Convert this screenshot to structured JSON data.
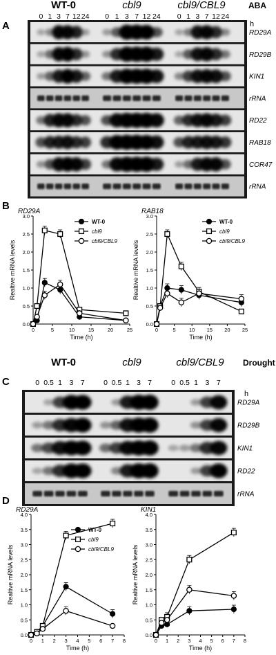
{
  "panelA": {
    "letter": "A",
    "strains": [
      {
        "label": "WT-0",
        "italic": false
      },
      {
        "label": "cbl9",
        "italic": true
      },
      {
        "label": "cbl9/CBL9",
        "italic": true
      }
    ],
    "treatment": "ABA",
    "unit": "h",
    "timepoints": [
      "0",
      "1",
      "3",
      "7",
      "12",
      "24"
    ],
    "genes": [
      "RD29A",
      "RD29B",
      "KIN1",
      "rRNA",
      "RD22",
      "RAB18",
      "COR47",
      "rRNA"
    ]
  },
  "panelC": {
    "letter": "C",
    "strains": [
      {
        "label": "WT-0",
        "italic": false
      },
      {
        "label": "cbl9",
        "italic": true
      },
      {
        "label": "cbl9/CBL9",
        "italic": true
      }
    ],
    "treatment": "Drought",
    "unit": "h",
    "timepoints": [
      "0",
      "0.5",
      "1",
      "3",
      "7"
    ],
    "genes": [
      "RD29A",
      "RD29B",
      "KIN1",
      "RD22",
      "rRNA"
    ]
  },
  "panelB": {
    "letter": "B"
  },
  "panelD": {
    "letter": "D"
  },
  "chart_data": [
    {
      "type": "line",
      "title": "RD29A",
      "xlabel": "Time (h)",
      "ylabel": "Realtive mRNA levels",
      "x": [
        0,
        1,
        3,
        7,
        12,
        24
      ],
      "xticks": [
        0,
        5,
        10,
        15,
        20,
        25
      ],
      "yticks": [
        0,
        0.5,
        1,
        1.5,
        2,
        2.5,
        3
      ],
      "xlim": [
        0,
        25
      ],
      "ylim": [
        0,
        3
      ],
      "series": [
        {
          "name": "WT-0",
          "values": [
            0,
            0.1,
            1.15,
            0.95,
            0.2,
            0.1
          ]
        },
        {
          "name": "cbl9",
          "values": [
            0,
            0.5,
            2.6,
            2.5,
            0.4,
            0.3
          ]
        },
        {
          "name": "cbl9/CBL9",
          "values": [
            0,
            0.2,
            0.8,
            1.1,
            0.3,
            0.1
          ]
        }
      ]
    },
    {
      "type": "line",
      "title": "RAB18",
      "xlabel": "Time (h)",
      "ylabel": "Realtive mRNA levels",
      "x": [
        0,
        1,
        3,
        7,
        12,
        24
      ],
      "xticks": [
        0,
        5,
        10,
        15,
        20,
        25
      ],
      "yticks": [
        0,
        0.5,
        1,
        1.5,
        2,
        2.5,
        3
      ],
      "xlim": [
        0,
        25
      ],
      "ylim": [
        0,
        3
      ],
      "series": [
        {
          "name": "WT-0",
          "values": [
            0,
            0.5,
            1.0,
            0.95,
            0.8,
            0.6
          ]
        },
        {
          "name": "cbl9",
          "values": [
            0,
            0.5,
            2.5,
            1.6,
            0.9,
            0.35
          ]
        },
        {
          "name": "cbl9/CBL9",
          "values": [
            0,
            0.45,
            0.85,
            0.6,
            0.85,
            0.7
          ]
        }
      ]
    },
    {
      "type": "line",
      "title": "RD29A",
      "xlabel": "Time (h)",
      "ylabel": "Realtive mRNA levels",
      "x": [
        0,
        0.5,
        1,
        3,
        7
      ],
      "xticks": [
        0,
        1,
        2,
        3,
        4,
        5,
        6,
        7,
        8
      ],
      "yticks": [
        0,
        0.5,
        1,
        1.5,
        2,
        2.5,
        3,
        3.5,
        4
      ],
      "xlim": [
        0,
        8
      ],
      "ylim": [
        0,
        4
      ],
      "series": [
        {
          "name": "WT-0",
          "values": [
            0,
            0.05,
            0.3,
            1.6,
            0.7
          ]
        },
        {
          "name": "cbl9",
          "values": [
            0,
            0.1,
            0.3,
            3.3,
            3.7
          ]
        },
        {
          "name": "cbl9/CBL9",
          "values": [
            0,
            0.05,
            0.2,
            0.8,
            0.3
          ]
        }
      ]
    },
    {
      "type": "line",
      "title": "KIN1",
      "xlabel": "Time (h)",
      "ylabel": "Realtive mRNA levels",
      "x": [
        0,
        0.5,
        1,
        3,
        7
      ],
      "xticks": [
        0,
        1,
        2,
        3,
        4,
        5,
        6,
        7,
        8
      ],
      "yticks": [
        0,
        0.5,
        1,
        1.5,
        2,
        2.5,
        3,
        3.5,
        4
      ],
      "xlim": [
        0,
        8
      ],
      "ylim": [
        0,
        4
      ],
      "series": [
        {
          "name": "WT-0",
          "values": [
            0,
            0.3,
            0.35,
            0.8,
            0.85
          ]
        },
        {
          "name": "cbl9",
          "values": [
            0,
            0.5,
            0.6,
            2.5,
            3.4
          ]
        },
        {
          "name": "cbl9/CBL9",
          "values": [
            0,
            0.4,
            0.5,
            1.5,
            1.3
          ]
        }
      ]
    }
  ],
  "series_styles": [
    {
      "marker": "filled-circle",
      "color": "#000000",
      "italic": false
    },
    {
      "marker": "open-square",
      "color": "#000000",
      "italic": true
    },
    {
      "marker": "open-circle",
      "color": "#000000",
      "italic": true
    }
  ]
}
